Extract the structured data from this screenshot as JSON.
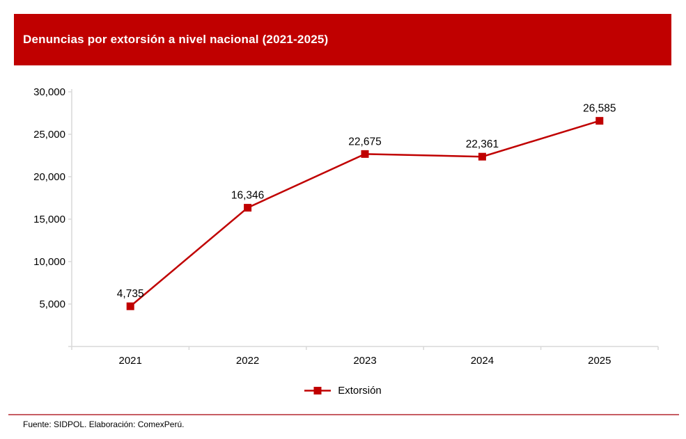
{
  "header": {
    "title": "Denuncias por extorsión a nivel nacional (2021-2025)",
    "background_color": "#C00000",
    "text_color": "#FFFFFF"
  },
  "chart_data": {
    "type": "line",
    "title": "Denuncias por extorsión a nivel nacional (2021-2025)",
    "categories": [
      "2021",
      "2022",
      "2023",
      "2024",
      "2025"
    ],
    "series": [
      {
        "name": "Extorsión",
        "values": [
          4735,
          16346,
          22675,
          22361,
          26585
        ]
      }
    ],
    "data_labels": [
      "4,735",
      "16,346",
      "22,675",
      "22,361",
      "26,585"
    ],
    "xlabel": "",
    "ylabel": "",
    "ylim": [
      0,
      30000
    ],
    "y_ticks": [
      5000,
      10000,
      15000,
      20000,
      25000,
      30000
    ],
    "y_tick_labels": [
      "5,000",
      "10,000",
      "15,000",
      "20,000",
      "25,000",
      "30,000"
    ],
    "grid": false,
    "legend_position": "bottom",
    "line_color": "#C00000",
    "marker": "square",
    "axis_color": "#D9D9D9",
    "label_color": "#000000"
  },
  "legend": {
    "label": "Extorsión"
  },
  "footer": {
    "source": "Fuente: SIDPOL. Elaboración: ComexPerú.",
    "divider_color": "#C75D63"
  }
}
